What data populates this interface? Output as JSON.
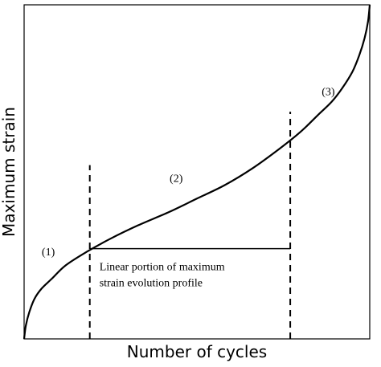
{
  "chart_data": {
    "type": "line",
    "title": "",
    "xlabel": "Number of cycles",
    "ylabel": "Maximum strain",
    "xlim": [
      0,
      1
    ],
    "ylim": [
      0,
      1
    ],
    "ticks": false,
    "grid": false,
    "series": [
      {
        "x": [
          0.0,
          0.005,
          0.015,
          0.03,
          0.05,
          0.08,
          0.12,
          0.18,
          0.25,
          0.33,
          0.42,
          0.5,
          0.58,
          0.66,
          0.74,
          0.8,
          0.85,
          0.89,
          0.92,
          0.95,
          0.97,
          0.985,
          0.995,
          1.0
        ],
        "y": [
          0.0,
          0.04,
          0.08,
          0.12,
          0.15,
          0.18,
          0.22,
          0.26,
          0.3,
          0.34,
          0.38,
          0.42,
          0.46,
          0.51,
          0.57,
          0.62,
          0.67,
          0.71,
          0.75,
          0.8,
          0.85,
          0.9,
          0.95,
          1.0
        ]
      }
    ],
    "vlines": [
      {
        "x": 0.19,
        "y_from": 0.0,
        "y_to": 0.52
      },
      {
        "x": 0.77,
        "y_from": 0.0,
        "y_to": 0.68
      }
    ],
    "hspan": {
      "x_from": 0.19,
      "x_to": 0.77,
      "y": 0.27
    },
    "stage_labels": [
      {
        "text": "(1)",
        "x": 0.07,
        "y": 0.25
      },
      {
        "text": "(2)",
        "x": 0.44,
        "y": 0.47
      },
      {
        "text": "(3)",
        "x": 0.88,
        "y": 0.73
      }
    ],
    "annotation": [
      "Linear portion of maximum",
      "strain evolution profile"
    ]
  }
}
